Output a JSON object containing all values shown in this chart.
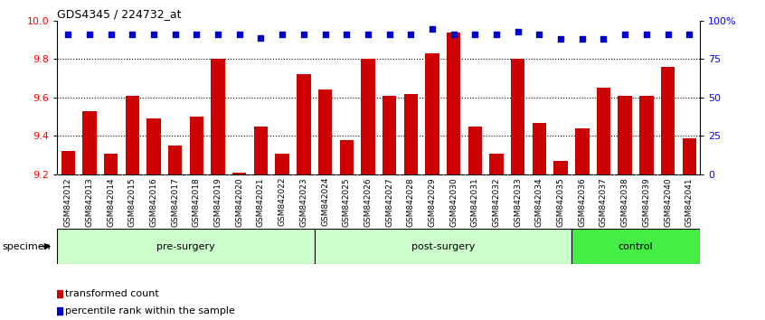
{
  "title": "GDS4345 / 224732_at",
  "categories": [
    "GSM842012",
    "GSM842013",
    "GSM842014",
    "GSM842015",
    "GSM842016",
    "GSM842017",
    "GSM842018",
    "GSM842019",
    "GSM842020",
    "GSM842021",
    "GSM842022",
    "GSM842023",
    "GSM842024",
    "GSM842025",
    "GSM842026",
    "GSM842027",
    "GSM842028",
    "GSM842029",
    "GSM842030",
    "GSM842031",
    "GSM842032",
    "GSM842033",
    "GSM842034",
    "GSM842035",
    "GSM842036",
    "GSM842037",
    "GSM842038",
    "GSM842039",
    "GSM842040",
    "GSM842041"
  ],
  "bar_values": [
    9.32,
    9.53,
    9.31,
    9.61,
    9.49,
    9.35,
    9.5,
    9.8,
    9.21,
    9.45,
    9.31,
    9.72,
    9.64,
    9.38,
    9.8,
    9.61,
    9.62,
    9.83,
    9.94,
    9.45,
    9.31,
    9.8,
    9.47,
    9.27,
    9.44,
    9.65,
    9.61,
    9.61,
    9.76,
    9.39
  ],
  "dot_values_pct": [
    91,
    91,
    91,
    91,
    91,
    91,
    91,
    91,
    91,
    89,
    91,
    91,
    91,
    91,
    91,
    91,
    91,
    95,
    91,
    91,
    91,
    93,
    91,
    88,
    88,
    88,
    91,
    91,
    91,
    91
  ],
  "groups": [
    {
      "label": "pre-surgery",
      "start": 0,
      "end": 12,
      "color": "#ccffcc"
    },
    {
      "label": "post-surgery",
      "start": 12,
      "end": 24,
      "color": "#ccffcc"
    },
    {
      "label": "control",
      "start": 24,
      "end": 30,
      "color": "#44dd44"
    }
  ],
  "ylim": [
    9.2,
    10.0
  ],
  "y2lim": [
    0,
    100
  ],
  "yticks": [
    9.2,
    9.4,
    9.6,
    9.8,
    10.0
  ],
  "y2ticks": [
    0,
    25,
    50,
    75,
    100
  ],
  "bar_color": "#cc0000",
  "dot_color": "#0000cc",
  "bar_width": 0.65,
  "xtick_bg": "#c8c8c8",
  "legend_items": [
    {
      "label": "transformed count",
      "color": "#cc0000"
    },
    {
      "label": "percentile rank within the sample",
      "color": "#0000cc"
    }
  ],
  "specimen_label": "specimen"
}
